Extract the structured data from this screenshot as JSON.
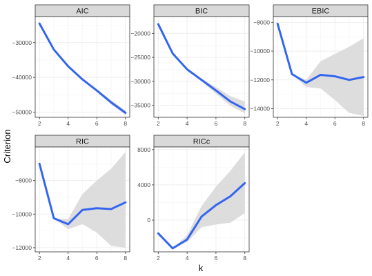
{
  "chart_data": {
    "type": "line",
    "layout": "facet_wrap",
    "xlabel": "k",
    "ylabel": "Criterion",
    "grid": true,
    "colors": {
      "line": "#3366ee",
      "ribbon": "#d9d9d9",
      "strip": "#d9d9d9",
      "strip_border": "#333333",
      "gridline": "#ebebeb"
    },
    "panels": [
      {
        "title": "AIC",
        "x": [
          2,
          3,
          4,
          5,
          6,
          7,
          8
        ],
        "y": [
          -24500,
          -32000,
          -36800,
          -40600,
          -43800,
          -47200,
          -50200
        ],
        "lower": [
          -24500,
          -32000,
          -36900,
          -40800,
          -44200,
          -47800,
          -50800
        ],
        "upper": [
          -24500,
          -32000,
          -36700,
          -40400,
          -43400,
          -46600,
          -49500
        ],
        "xlim": [
          1.7,
          8.3
        ],
        "ylim": [
          -51500,
          -22500
        ],
        "yticks": [
          -30000,
          -40000,
          -50000
        ],
        "ytick_labels": [
          "-30000",
          "-40000",
          "-50000"
        ],
        "xticks": [
          2,
          4,
          6,
          8
        ]
      },
      {
        "title": "BIC",
        "x": [
          2,
          3,
          4,
          5,
          6,
          7,
          8
        ],
        "y": [
          -18100,
          -24200,
          -27500,
          -29700,
          -31900,
          -34200,
          -35800
        ],
        "lower": [
          -18100,
          -24200,
          -27600,
          -30000,
          -32600,
          -35100,
          -36700
        ],
        "upper": [
          -18100,
          -24200,
          -27400,
          -29400,
          -31200,
          -33100,
          -34200
        ],
        "xlim": [
          1.7,
          8.3
        ],
        "ylim": [
          -37500,
          -16500
        ],
        "yticks": [
          -20000,
          -25000,
          -30000,
          -35000
        ],
        "ytick_labels": [
          "-20000",
          "-25000",
          "-30000",
          "-35000"
        ],
        "xticks": [
          2,
          4,
          6,
          8
        ]
      },
      {
        "title": "EBIC",
        "x": [
          2,
          3,
          4,
          5,
          6,
          7,
          8
        ],
        "y": [
          -8100,
          -11600,
          -12200,
          -11650,
          -11750,
          -12000,
          -11800
        ],
        "lower": [
          -8100,
          -11600,
          -12500,
          -12600,
          -13400,
          -14300,
          -14500
        ],
        "upper": [
          -8100,
          -11600,
          -12000,
          -10700,
          -10200,
          -9700,
          -9100
        ],
        "xlim": [
          1.7,
          8.3
        ],
        "ylim": [
          -14600,
          -7600
        ],
        "yticks": [
          -8000,
          -10000,
          -12000,
          -14000
        ],
        "ytick_labels": [
          "-8000",
          "-10000",
          "-12000",
          "-14000"
        ],
        "xticks": [
          2,
          4,
          6,
          8
        ]
      },
      {
        "title": "RIC",
        "x": [
          2,
          3,
          4,
          5,
          6,
          7,
          8
        ],
        "y": [
          -7000,
          -10250,
          -10600,
          -9750,
          -9650,
          -9700,
          -9300
        ],
        "lower": [
          -7000,
          -10250,
          -10900,
          -10600,
          -11100,
          -11900,
          -12000
        ],
        "upper": [
          -7000,
          -10250,
          -10300,
          -8800,
          -8000,
          -7300,
          -6300
        ],
        "xlim": [
          1.7,
          8.3
        ],
        "ylim": [
          -12250,
          -6000
        ],
        "yticks": [
          -8000,
          -10000,
          -12000
        ],
        "ytick_labels": [
          "-8000",
          "-10000",
          "-12000"
        ],
        "xticks": [
          2,
          4,
          6,
          8
        ]
      },
      {
        "title": "RICc",
        "x": [
          2,
          3,
          4,
          5,
          6,
          7,
          8
        ],
        "y": [
          -1500,
          -3200,
          -2200,
          400,
          1700,
          2700,
          4200
        ],
        "lower": [
          -1500,
          -3200,
          -2500,
          -800,
          -500,
          -300,
          800
        ],
        "upper": [
          -1500,
          -3200,
          -1700,
          1600,
          3800,
          5600,
          7700
        ],
        "xlim": [
          1.7,
          8.3
        ],
        "ylim": [
          -3600,
          8300
        ],
        "yticks": [
          0,
          4000,
          8000
        ],
        "ytick_labels": [
          "0",
          "4000",
          "8000"
        ],
        "xticks": [
          2,
          4,
          6,
          8
        ]
      }
    ]
  }
}
